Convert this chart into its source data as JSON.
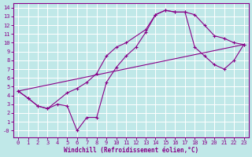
{
  "xlabel": "Windchill (Refroidissement éolien,°C)",
  "background_color": "#c0e8e8",
  "grid_color": "#ffffff",
  "line_color": "#880088",
  "spine_color": "#880088",
  "xlim": [
    -0.5,
    23.5
  ],
  "ylim": [
    -0.8,
    14.5
  ],
  "xticks": [
    0,
    1,
    2,
    3,
    4,
    5,
    6,
    7,
    8,
    9,
    10,
    11,
    12,
    13,
    14,
    15,
    16,
    17,
    18,
    19,
    20,
    21,
    22,
    23
  ],
  "yticks": [
    0,
    1,
    2,
    3,
    4,
    5,
    6,
    7,
    8,
    9,
    10,
    11,
    12,
    13,
    14
  ],
  "ytick_labels": [
    "-0",
    "1",
    "2",
    "3",
    "4",
    "5",
    "6",
    "7",
    "8",
    "9",
    "10",
    "11",
    "12",
    "13",
    "14"
  ],
  "curve1_x": [
    0,
    1,
    2,
    3,
    5,
    6,
    7,
    8,
    9,
    10,
    11,
    13,
    14,
    15,
    16,
    17,
    18,
    19,
    20,
    21,
    22,
    23
  ],
  "curve1_y": [
    4.5,
    3.7,
    2.8,
    2.5,
    4.3,
    4.8,
    5.5,
    6.5,
    8.5,
    9.5,
    10.0,
    11.5,
    13.2,
    13.7,
    13.5,
    13.5,
    13.2,
    12.0,
    10.8,
    10.5,
    10.0,
    9.8
  ],
  "curve2_x": [
    0,
    1,
    2,
    3,
    4,
    5,
    6,
    7,
    8,
    9,
    10,
    11,
    12,
    13,
    14,
    15,
    16,
    17,
    18,
    19,
    20,
    21,
    22,
    23
  ],
  "curve2_y": [
    4.5,
    3.7,
    2.8,
    2.5,
    3.0,
    2.8,
    0.0,
    1.5,
    1.5,
    5.5,
    7.2,
    8.5,
    9.5,
    11.2,
    13.2,
    13.7,
    13.5,
    13.5,
    9.5,
    8.5,
    7.5,
    7.0,
    8.0,
    9.8
  ],
  "curve3_x": [
    0,
    23
  ],
  "curve3_y": [
    4.5,
    9.8
  ],
  "xlabel_fontsize": 5.5,
  "tick_fontsize": 5.0
}
